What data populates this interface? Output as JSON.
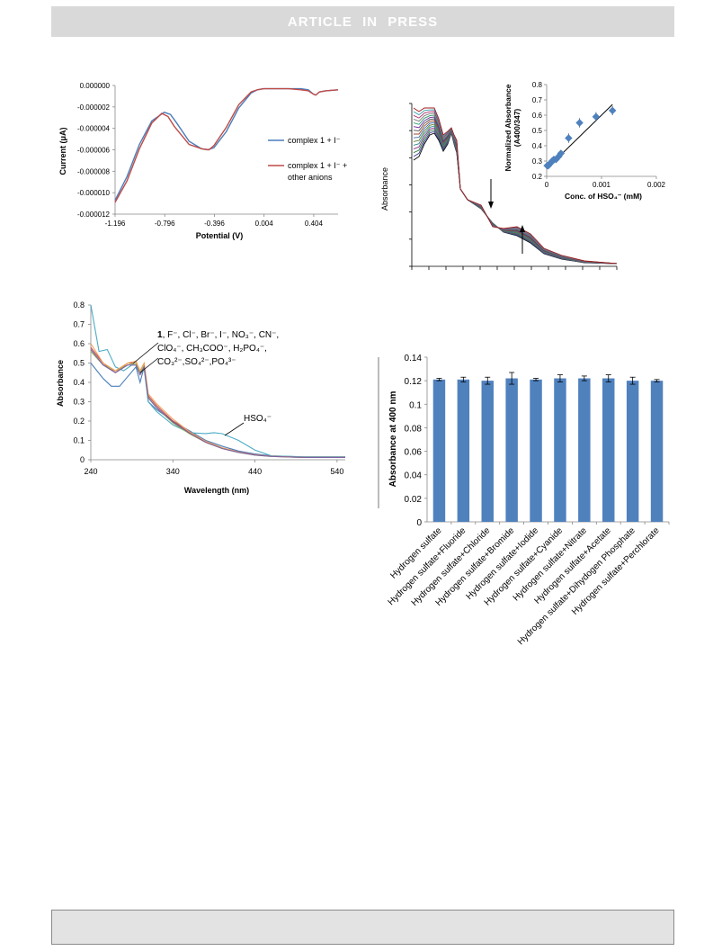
{
  "header": {
    "text": "ARTICLE  IN  PRESS"
  },
  "chart_data": [
    {
      "type": "line",
      "id": "cv",
      "xlabel": "Potential (V)",
      "ylabel": "Current (μA)",
      "xticks": [
        "-1.196",
        "-0.796",
        "-0.396",
        "0.004",
        "0.404"
      ],
      "yticks": [
        "0.000000",
        "-0.000002",
        "-0.000004",
        "-0.000006",
        "-0.000008",
        "-0.000010",
        "-0.000012"
      ],
      "xlim": [
        -1.196,
        0.6
      ],
      "ylim": [
        -1.2e-05,
        0
      ],
      "legend_position": "right",
      "series": [
        {
          "name": "complex 1 + I⁻",
          "color": "#4a7ebb",
          "x": [
            -1.196,
            -1.1,
            -1.0,
            -0.9,
            -0.8,
            -0.75,
            -0.7,
            -0.6,
            -0.5,
            -0.45,
            -0.4,
            -0.3,
            -0.2,
            -0.1,
            -0.05,
            0.0,
            0.1,
            0.2,
            0.3,
            0.36,
            0.4,
            0.42,
            0.45,
            0.5,
            0.6
          ],
          "y": [
            -1.07e-05,
            -8.5e-06,
            -5.5e-06,
            -3.3e-06,
            -2.5e-06,
            -2.7e-06,
            -3.5e-06,
            -5.2e-06,
            -5.9e-06,
            -6e-06,
            -5.8e-06,
            -4.3e-06,
            -2.1e-06,
            -7e-07,
            -4e-07,
            -3e-07,
            -3e-07,
            -3e-07,
            -3e-07,
            -4e-07,
            -8e-07,
            -9e-07,
            -6e-07,
            -5e-07,
            -4e-07
          ]
        },
        {
          "name": "complex 1 + I⁻ + other anions",
          "color": "#be4b48",
          "x": [
            -1.196,
            -1.1,
            -1.0,
            -0.9,
            -0.82,
            -0.77,
            -0.72,
            -0.6,
            -0.5,
            -0.44,
            -0.4,
            -0.3,
            -0.2,
            -0.1,
            -0.05,
            0.0,
            0.1,
            0.2,
            0.3,
            0.36,
            0.4,
            0.42,
            0.45,
            0.5,
            0.6
          ],
          "y": [
            -1.09e-05,
            -8.9e-06,
            -5.9e-06,
            -3.5e-06,
            -2.6e-06,
            -2.9e-06,
            -3.8e-06,
            -5.5e-06,
            -5.9e-06,
            -6e-06,
            -5.6e-06,
            -3.9e-06,
            -1.8e-06,
            -6e-07,
            -4e-07,
            -3e-07,
            -3e-07,
            -3e-07,
            -4e-07,
            -5e-07,
            -8e-07,
            -9e-07,
            -6e-07,
            -5e-07,
            -4e-07
          ]
        }
      ]
    },
    {
      "type": "line",
      "id": "titration",
      "ylabel": "Absorbance",
      "note": "family of titration spectra, no tick labels printed; arrows mark decrease and increase",
      "series_colors": [
        "#000000",
        "#3a3a9a",
        "#2f7f3a",
        "#8a2a8a",
        "#2a8a8a",
        "#5a7a2a",
        "#3a6ab0",
        "#9a4a2a",
        "#4a4a4a",
        "#6a2a9a",
        "#2a9a6a",
        "#7a7a7a",
        "#b0306a",
        "#3a9ab0",
        "#a01818"
      ]
    },
    {
      "type": "scatter",
      "id": "inset",
      "xlabel": "Conc. of HSO₄⁻ (mM)",
      "ylabel_line1": "Normalized Absorbance",
      "ylabel_line2": "(A400/347)",
      "xticks": [
        "0",
        "0.001",
        "0.002"
      ],
      "yticks": [
        "0.2",
        "0.3",
        "0.4",
        "0.5",
        "0.6",
        "0.7",
        "0.8"
      ],
      "xlim": [
        0,
        0.002
      ],
      "ylim": [
        0.2,
        0.8
      ],
      "points": [
        {
          "x": 1e-05,
          "y": 0.27
        },
        {
          "x": 3e-05,
          "y": 0.27
        },
        {
          "x": 5e-05,
          "y": 0.28
        },
        {
          "x": 8e-05,
          "y": 0.29
        },
        {
          "x": 0.0001,
          "y": 0.3
        },
        {
          "x": 0.00013,
          "y": 0.31
        },
        {
          "x": 0.00017,
          "y": 0.31
        },
        {
          "x": 0.00022,
          "y": 0.33
        },
        {
          "x": 0.00026,
          "y": 0.35
        },
        {
          "x": 0.0004,
          "y": 0.45
        },
        {
          "x": 0.0006,
          "y": 0.55
        },
        {
          "x": 0.0009,
          "y": 0.59
        },
        {
          "x": 0.0012,
          "y": 0.63
        }
      ],
      "error": [
        0.02,
        0.02,
        0.02,
        0.02,
        0.02,
        0.02,
        0.02,
        0.02,
        0.02,
        0.03,
        0.03,
        0.03,
        0.03
      ],
      "fit": {
        "x": [
          0,
          0.0012
        ],
        "y": [
          0.25,
          0.67
        ]
      }
    },
    {
      "type": "line",
      "id": "selectivity",
      "xlabel": "Wavelength (nm)",
      "ylabel": "Absorbance",
      "xticks": [
        "240",
        "340",
        "440",
        "540"
      ],
      "yticks": [
        "0.8",
        "0.7",
        "0.6",
        "0.5",
        "0.4",
        "0.3",
        "0.2",
        "0.1",
        "0"
      ],
      "xlim": [
        240,
        550
      ],
      "ylim": [
        0,
        0.8
      ],
      "annotation_1": {
        "line1": {
          "bold": "1",
          "text": ", F⁻, Cl⁻, Br⁻, I⁻, NO₃⁻, CN⁻,"
        },
        "line2": "ClO₄⁻, CH₃COO⁻, H₂PO₄⁻,",
        "line3": "CO₃²⁻,SO₄²⁻,PO₄³⁻"
      },
      "annotation_2": "HSO₄⁻",
      "series": [
        {
          "color": "#4a7ebb",
          "x": [
            240,
            255,
            265,
            275,
            285,
            295,
            300,
            305,
            310,
            320,
            340,
            360,
            380,
            400,
            420,
            440,
            460,
            500,
            550
          ],
          "y": [
            0.5,
            0.42,
            0.38,
            0.38,
            0.43,
            0.48,
            0.4,
            0.48,
            0.3,
            0.26,
            0.2,
            0.15,
            0.1,
            0.07,
            0.045,
            0.03,
            0.02,
            0.015,
            0.015
          ]
        },
        {
          "color": "#4bacc6",
          "x": [
            240,
            250,
            260,
            270,
            280,
            290,
            295,
            300,
            305,
            310,
            320,
            340,
            360,
            380,
            390,
            400,
            420,
            440,
            460,
            500,
            550
          ],
          "y": [
            0.8,
            0.56,
            0.57,
            0.48,
            0.46,
            0.49,
            0.49,
            0.44,
            0.47,
            0.3,
            0.25,
            0.18,
            0.14,
            0.135,
            0.14,
            0.135,
            0.1,
            0.05,
            0.02,
            0.015,
            0.015
          ]
        },
        {
          "color": "#be4b48",
          "x": [
            240,
            255,
            270,
            285,
            295,
            300,
            305,
            310,
            320,
            340,
            360,
            380,
            400,
            420,
            440,
            460,
            500,
            550
          ],
          "y": [
            0.58,
            0.5,
            0.45,
            0.5,
            0.5,
            0.44,
            0.48,
            0.33,
            0.28,
            0.2,
            0.14,
            0.09,
            0.06,
            0.04,
            0.025,
            0.018,
            0.012,
            0.012
          ]
        },
        {
          "color": "#98b954",
          "x": [
            240,
            255,
            270,
            285,
            295,
            300,
            305,
            310,
            320,
            340,
            360,
            380,
            400,
            420,
            440,
            460,
            500,
            550
          ],
          "y": [
            0.56,
            0.49,
            0.46,
            0.49,
            0.5,
            0.45,
            0.49,
            0.32,
            0.27,
            0.19,
            0.135,
            0.09,
            0.058,
            0.038,
            0.024,
            0.017,
            0.012,
            0.012
          ]
        },
        {
          "color": "#f59d56",
          "x": [
            240,
            255,
            270,
            285,
            295,
            300,
            305,
            310,
            320,
            340,
            360,
            380,
            400,
            420,
            440,
            460,
            500,
            550
          ],
          "y": [
            0.6,
            0.5,
            0.46,
            0.5,
            0.51,
            0.46,
            0.5,
            0.34,
            0.29,
            0.21,
            0.145,
            0.095,
            0.062,
            0.04,
            0.026,
            0.018,
            0.012,
            0.012
          ]
        },
        {
          "color": "#7d60a0",
          "x": [
            240,
            255,
            270,
            285,
            295,
            300,
            305,
            310,
            320,
            340,
            360,
            380,
            400,
            420,
            440,
            460,
            500,
            550
          ],
          "y": [
            0.57,
            0.49,
            0.45,
            0.49,
            0.49,
            0.44,
            0.48,
            0.32,
            0.27,
            0.195,
            0.138,
            0.09,
            0.058,
            0.038,
            0.024,
            0.017,
            0.012,
            0.012
          ]
        }
      ]
    },
    {
      "type": "bar",
      "id": "bars",
      "ylabel": "Absorbance at 400 nm",
      "yticks": [
        "0.14",
        "0.12",
        "0.1",
        "0.08",
        "0.06",
        "0.04",
        "0.02",
        "0"
      ],
      "ylim": [
        0,
        0.14
      ],
      "color": "#4f81bd",
      "categories": [
        "Hydrogen sulfate",
        "Hydrogen sulfate+Fluoride",
        "Hydrogen sulfate+Chloride",
        "Hydrogen sulfate+Bromide",
        "Hydrogen sulfate+Iodide",
        "Hydrogen sulfate+Cyanide",
        "Hydrogen sulfate+Nitrate",
        "Hydrogen sulfate+Acetate",
        "Hydrogen sulfate+Dihydogen  Phosphate",
        "Hydrogen sulfate+Perchlorate"
      ],
      "values": [
        0.121,
        0.121,
        0.12,
        0.122,
        0.121,
        0.122,
        0.122,
        0.122,
        0.12,
        0.12
      ],
      "errors": [
        0.001,
        0.002,
        0.003,
        0.005,
        0.001,
        0.003,
        0.002,
        0.003,
        0.003,
        0.001
      ]
    }
  ]
}
